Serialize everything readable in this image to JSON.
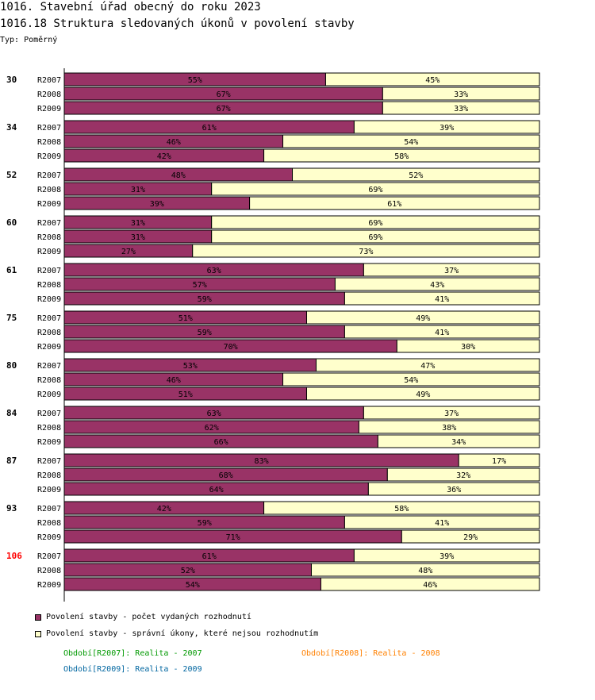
{
  "header": {
    "title": "1016. Stavební úřad obecný do roku 2023",
    "subtitle": "1016.18 Struktura sledovaných úkonů v povolení stavby",
    "type_label": "Typ: Poměrný"
  },
  "colors": {
    "series1": "#993366",
    "series2": "#ffffcc",
    "highlight_group": "#ff0000",
    "period1": "#009900",
    "period2": "#ff8000",
    "period3": "#0066a0"
  },
  "chart_data": {
    "type": "bar",
    "orientation": "horizontal-stacked-100",
    "groups": [
      {
        "label": "30",
        "highlight": false,
        "rows": [
          {
            "period": "R2007",
            "values": [
              55,
              45
            ]
          },
          {
            "period": "R2008",
            "values": [
              67,
              33
            ]
          },
          {
            "period": "R2009",
            "values": [
              67,
              33
            ]
          }
        ]
      },
      {
        "label": "34",
        "highlight": false,
        "rows": [
          {
            "period": "R2007",
            "values": [
              61,
              39
            ]
          },
          {
            "period": "R2008",
            "values": [
              46,
              54
            ]
          },
          {
            "period": "R2009",
            "values": [
              42,
              58
            ]
          }
        ]
      },
      {
        "label": "52",
        "highlight": false,
        "rows": [
          {
            "period": "R2007",
            "values": [
              48,
              52
            ]
          },
          {
            "period": "R2008",
            "values": [
              31,
              69
            ]
          },
          {
            "period": "R2009",
            "values": [
              39,
              61
            ]
          }
        ]
      },
      {
        "label": "60",
        "highlight": false,
        "rows": [
          {
            "period": "R2007",
            "values": [
              31,
              69
            ]
          },
          {
            "period": "R2008",
            "values": [
              31,
              69
            ]
          },
          {
            "period": "R2009",
            "values": [
              27,
              73
            ]
          }
        ]
      },
      {
        "label": "61",
        "highlight": false,
        "rows": [
          {
            "period": "R2007",
            "values": [
              63,
              37
            ]
          },
          {
            "period": "R2008",
            "values": [
              57,
              43
            ]
          },
          {
            "period": "R2009",
            "values": [
              59,
              41
            ]
          }
        ]
      },
      {
        "label": "75",
        "highlight": false,
        "rows": [
          {
            "period": "R2007",
            "values": [
              51,
              49
            ]
          },
          {
            "period": "R2008",
            "values": [
              59,
              41
            ]
          },
          {
            "period": "R2009",
            "values": [
              70,
              30
            ]
          }
        ]
      },
      {
        "label": "80",
        "highlight": false,
        "rows": [
          {
            "period": "R2007",
            "values": [
              53,
              47
            ]
          },
          {
            "period": "R2008",
            "values": [
              46,
              54
            ]
          },
          {
            "period": "R2009",
            "values": [
              51,
              49
            ]
          }
        ]
      },
      {
        "label": "84",
        "highlight": false,
        "rows": [
          {
            "period": "R2007",
            "values": [
              63,
              37
            ]
          },
          {
            "period": "R2008",
            "values": [
              62,
              38
            ]
          },
          {
            "period": "R2009",
            "values": [
              66,
              34
            ]
          }
        ]
      },
      {
        "label": "87",
        "highlight": false,
        "rows": [
          {
            "period": "R2007",
            "values": [
              83,
              17
            ]
          },
          {
            "period": "R2008",
            "values": [
              68,
              32
            ]
          },
          {
            "period": "R2009",
            "values": [
              64,
              36
            ]
          }
        ]
      },
      {
        "label": "93",
        "highlight": false,
        "rows": [
          {
            "period": "R2007",
            "values": [
              42,
              58
            ]
          },
          {
            "period": "R2008",
            "values": [
              59,
              41
            ]
          },
          {
            "period": "R2009",
            "values": [
              71,
              29
            ]
          }
        ]
      },
      {
        "label": "106",
        "highlight": true,
        "rows": [
          {
            "period": "R2007",
            "values": [
              61,
              39
            ]
          },
          {
            "period": "R2008",
            "values": [
              52,
              48
            ]
          },
          {
            "period": "R2009",
            "values": [
              54,
              46
            ]
          }
        ]
      }
    ],
    "series": [
      {
        "name": "Povolení stavby - počet vydaných rozhodnutí"
      },
      {
        "name": "Povolení stavby - správní úkony, které nejsou rozhodnutím"
      }
    ],
    "value_suffix": "%",
    "xlim": [
      0,
      100
    ]
  },
  "periods": [
    {
      "text": "Období[R2007]: Realita - 2007"
    },
    {
      "text": "Období[R2008]: Realita - 2008"
    },
    {
      "text": "Období[R2009]: Realita - 2009"
    }
  ]
}
